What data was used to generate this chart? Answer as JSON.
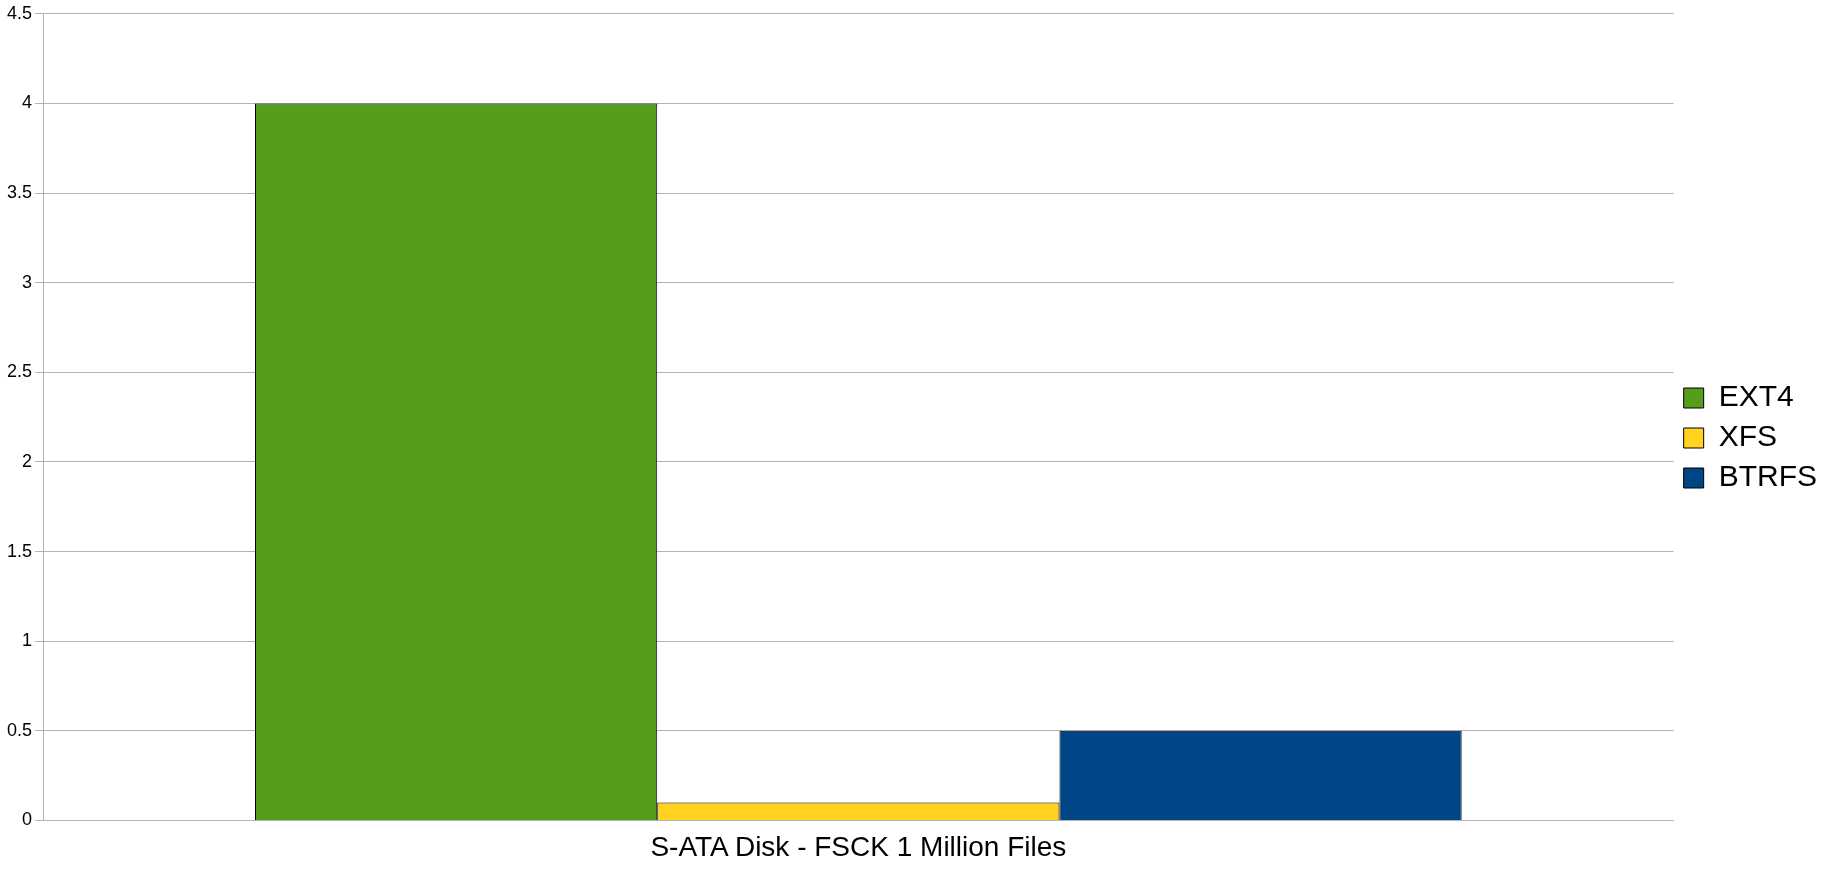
{
  "chart_data": {
    "type": "bar",
    "categories": [
      "S-ATA Disk - FSCK 1 Million Files"
    ],
    "series": [
      {
        "name": "EXT4",
        "color": "#579d1c",
        "values": [
          4
        ]
      },
      {
        "name": "XFS",
        "color": "#ffd320",
        "values": [
          0.1
        ]
      },
      {
        "name": "BTRFS",
        "color": "#004586",
        "values": [
          0.5
        ]
      }
    ],
    "ylim": [
      0,
      4.5
    ],
    "yticks": [
      0,
      0.5,
      1,
      1.5,
      2,
      2.5,
      3,
      3.5,
      4,
      4.5
    ],
    "grid": "y",
    "legend": "right"
  }
}
